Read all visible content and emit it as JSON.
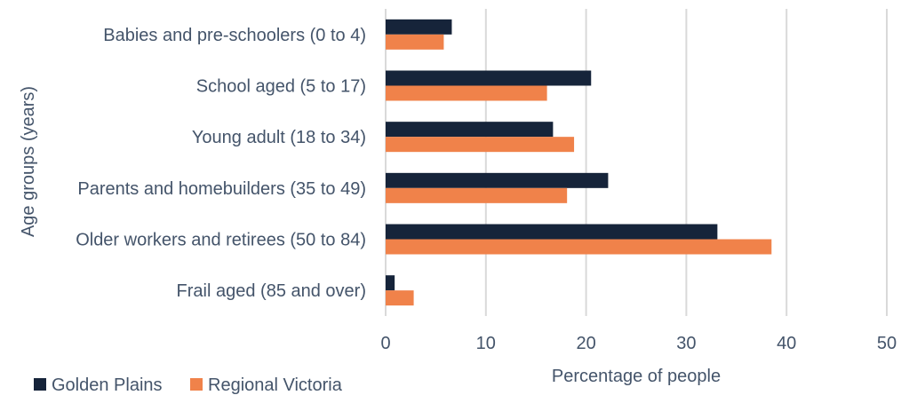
{
  "chart_data": {
    "type": "bar",
    "orientation": "horizontal",
    "categories": [
      "Babies and pre-schoolers (0 to 4)",
      "School aged (5 to 17)",
      "Young adult (18 to 34)",
      "Parents and homebuilders (35 to 49)",
      "Older workers and retirees (50 to 84)",
      "Frail aged (85 and over)"
    ],
    "series": [
      {
        "name": "Golden Plains",
        "color": "#16243a",
        "values": [
          6.6,
          20.5,
          16.7,
          22.2,
          33.1,
          0.9
        ]
      },
      {
        "name": "Regional Victoria",
        "color": "#f0824a",
        "values": [
          5.8,
          16.1,
          18.8,
          18.1,
          38.5,
          2.8
        ]
      }
    ],
    "xlabel": "Percentage of people",
    "ylabel": "Age groups (years)",
    "xlim": [
      0,
      50
    ],
    "xticks": [
      0,
      10,
      20,
      30,
      40,
      50
    ],
    "grid": true,
    "legend": "bottom-left"
  }
}
